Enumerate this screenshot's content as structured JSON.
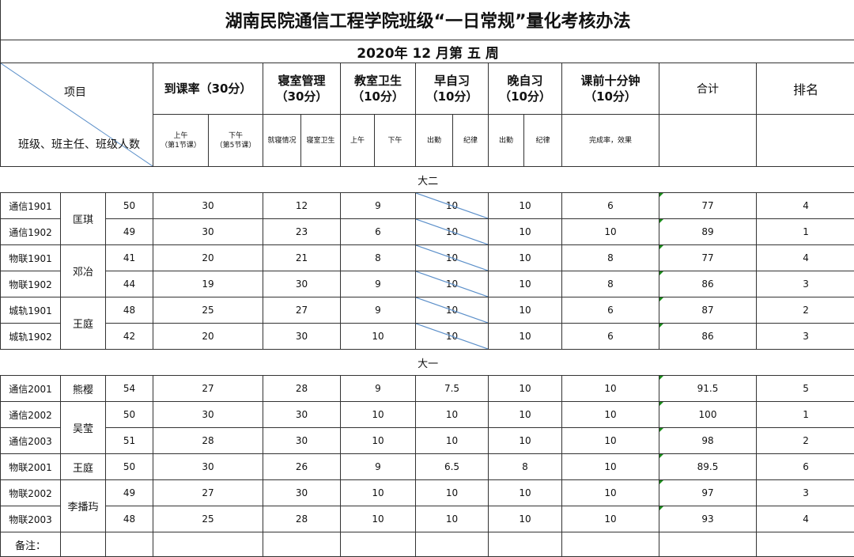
{
  "title": "湖南民院通信工程学院班级“一日常规”量化考核办法",
  "week": "2020年  12  月第  五  周",
  "header": {
    "corner_top": "项目",
    "corner_bottom": "班级、班主任、班级人数",
    "attendance": "到课率（30分）",
    "dorm": {
      "name": "寝室管理",
      "points": "（30分）"
    },
    "classroom": {
      "name": "教室卫生",
      "points": "（10分）"
    },
    "morning": {
      "name": "早自习",
      "points": "（10分）"
    },
    "evening": {
      "name": "晚自习",
      "points": "（10分）"
    },
    "preclass": {
      "name": "课前十分钟",
      "points": "（10分）"
    },
    "total": "合计",
    "rank": "排名",
    "sub": {
      "att_am": "上午",
      "att_am_note": "（第1节课）",
      "att_pm": "下午",
      "att_pm_note": "（第5节课）",
      "dorm_sleep": "就寝情况",
      "dorm_clean": "寝室卫生",
      "cls_am": "上午",
      "cls_pm": "下午",
      "mor_att": "出勤",
      "mor_disc": "纪律",
      "eve_att": "出勤",
      "eve_disc": "纪律",
      "pre": "完成率，效果"
    }
  },
  "sections": [
    {
      "label": "大二",
      "morning_struck": true,
      "groups": [
        {
          "teacher": "匡琪",
          "rows": [
            {
              "class": "通信1901",
              "count": "50",
              "attendance": "30",
              "dorm": "12",
              "classroom": "9",
              "morning": "10",
              "evening": "10",
              "preclass": "6",
              "total": "77",
              "rank": "4"
            },
            {
              "class": "通信1902",
              "count": "49",
              "attendance": "30",
              "dorm": "23",
              "classroom": "6",
              "morning": "10",
              "evening": "10",
              "preclass": "10",
              "total": "89",
              "rank": "1"
            }
          ]
        },
        {
          "teacher": "邓冶",
          "rows": [
            {
              "class": "物联1901",
              "count": "41",
              "attendance": "20",
              "dorm": "21",
              "classroom": "8",
              "morning": "10",
              "evening": "10",
              "preclass": "8",
              "total": "77",
              "rank": "4"
            },
            {
              "class": "物联1902",
              "count": "44",
              "attendance": "19",
              "dorm": "30",
              "classroom": "9",
              "morning": "10",
              "evening": "10",
              "preclass": "8",
              "total": "86",
              "rank": "3"
            }
          ]
        },
        {
          "teacher": "王庭",
          "rows": [
            {
              "class": "城轨1901",
              "count": "48",
              "attendance": "25",
              "dorm": "27",
              "classroom": "9",
              "morning": "10",
              "evening": "10",
              "preclass": "6",
              "total": "87",
              "rank": "2"
            },
            {
              "class": "城轨1902",
              "count": "42",
              "attendance": "20",
              "dorm": "30",
              "classroom": "10",
              "morning": "10",
              "evening": "10",
              "preclass": "6",
              "total": "86",
              "rank": "3"
            }
          ]
        }
      ]
    },
    {
      "label": "大一",
      "morning_struck": false,
      "groups": [
        {
          "teacher": "熊樱",
          "rows": [
            {
              "class": "通信2001",
              "count": "54",
              "attendance": "27",
              "dorm": "28",
              "classroom": "9",
              "morning": "7.5",
              "evening": "10",
              "preclass": "10",
              "total": "91.5",
              "rank": "5"
            }
          ]
        },
        {
          "teacher": "吴莹",
          "rows": [
            {
              "class": "通信2002",
              "count": "50",
              "attendance": "30",
              "dorm": "30",
              "classroom": "10",
              "morning": "10",
              "evening": "10",
              "preclass": "10",
              "total": "100",
              "rank": "1"
            },
            {
              "class": "通信2003",
              "count": "51",
              "attendance": "28",
              "dorm": "30",
              "classroom": "10",
              "morning": "10",
              "evening": "10",
              "preclass": "10",
              "total": "98",
              "rank": "2"
            }
          ]
        },
        {
          "teacher": "王庭",
          "rows": [
            {
              "class": "物联2001",
              "count": "50",
              "attendance": "30",
              "dorm": "26",
              "classroom": "9",
              "morning": "6.5",
              "evening": "8",
              "preclass": "10",
              "total": "89.5",
              "rank": "6"
            }
          ]
        },
        {
          "teacher": "李播玙",
          "rows": [
            {
              "class": "物联2002",
              "count": "49",
              "attendance": "27",
              "dorm": "30",
              "classroom": "10",
              "morning": "10",
              "evening": "10",
              "preclass": "10",
              "total": "97",
              "rank": "3"
            },
            {
              "class": "物联2003",
              "count": "48",
              "attendance": "25",
              "dorm": "28",
              "classroom": "10",
              "morning": "10",
              "evening": "10",
              "preclass": "10",
              "total": "93",
              "rank": "4"
            }
          ]
        }
      ]
    }
  ],
  "note_label": "备注：",
  "colors": {
    "grid": "#333333",
    "diagonal": "#5b8fc9",
    "formula_marker": "#1a8a1a"
  }
}
